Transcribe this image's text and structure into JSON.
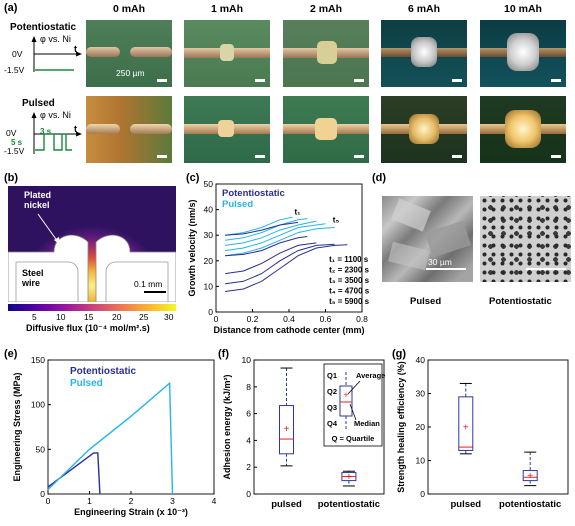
{
  "panel_labels": {
    "a": "(a)",
    "b": "(b)",
    "c": "(c)",
    "d": "(d)",
    "e": "(e)",
    "f": "(f)",
    "g": "(g)"
  },
  "panel_a": {
    "columns": [
      "0 mAh",
      "1 mAh",
      "2 mAh",
      "6 mAh",
      "10 mAh"
    ],
    "rows": [
      {
        "title": "Potentiostatic",
        "axis_label": "φ vs. Ni",
        "t_label": "t",
        "levels": [
          "0V",
          "-1.5V"
        ]
      },
      {
        "title": "Pulsed",
        "axis_label": "φ vs. Ni",
        "t_label": "t",
        "levels": [
          "0V",
          "-1.5V"
        ],
        "pulse_on": "3 s",
        "pulse_off": "5 s"
      }
    ],
    "scale_bar": "250 µm"
  },
  "panel_b": {
    "plated_label": "Plated\nnickel",
    "wire_label": "Steel\nwire",
    "scale_bar": "0.1 mm",
    "colorbar_ticks": [
      "5",
      "10",
      "15",
      "20",
      "25",
      "30"
    ],
    "colorbar_label": "Diffusive flux (10⁻⁴ mol/m².s)"
  },
  "panel_d": {
    "labels": [
      "Pulsed",
      "Potentiostatic"
    ],
    "scale_bar": "30 µm"
  },
  "chart_data": [
    {
      "type": "line",
      "panel": "c",
      "xlabel": "Distance from cathode center (mm)",
      "ylabel": "Growth velocity (nm/s)",
      "xlim": [
        0,
        0.8
      ],
      "ylim": [
        0,
        50
      ],
      "xticks": [
        0,
        0.2,
        0.4,
        0.6,
        0.8
      ],
      "yticks": [
        0,
        10,
        20,
        30,
        40,
        50
      ],
      "legend": [
        "Potentiostatic",
        "Pulsed"
      ],
      "legend_colors": [
        "#2b2f8e",
        "#27b4e6"
      ],
      "series_labels": [
        "t₁",
        "t₅"
      ],
      "time_table": [
        "t₁ = 1100 s",
        "t₂ = 2300 s",
        "t₃ = 3500 s",
        "t₄ = 4700 s",
        "t₅ = 5900 s"
      ],
      "series": [
        {
          "group": "Pulsed",
          "points": [
            [
              0.05,
              30
            ],
            [
              0.15,
              31
            ],
            [
              0.25,
              33
            ],
            [
              0.35,
              36
            ],
            [
              0.42,
              37
            ]
          ]
        },
        {
          "group": "Pulsed",
          "points": [
            [
              0.05,
              28
            ],
            [
              0.15,
              29
            ],
            [
              0.25,
              31
            ],
            [
              0.35,
              34
            ],
            [
              0.45,
              36
            ],
            [
              0.5,
              36.5
            ]
          ]
        },
        {
          "group": "Pulsed",
          "points": [
            [
              0.05,
              26
            ],
            [
              0.15,
              27
            ],
            [
              0.25,
              29
            ],
            [
              0.35,
              32
            ],
            [
              0.45,
              34
            ],
            [
              0.55,
              35.5
            ]
          ]
        },
        {
          "group": "Pulsed",
          "points": [
            [
              0.05,
              24
            ],
            [
              0.15,
              25
            ],
            [
              0.25,
              27
            ],
            [
              0.35,
              30
            ],
            [
              0.45,
              33
            ],
            [
              0.55,
              34
            ],
            [
              0.6,
              34.5
            ]
          ]
        },
        {
          "group": "Pulsed",
          "points": [
            [
              0.05,
              22
            ],
            [
              0.15,
              23
            ],
            [
              0.25,
              25
            ],
            [
              0.35,
              28
            ],
            [
              0.45,
              31
            ],
            [
              0.55,
              32.5
            ],
            [
              0.65,
              33
            ]
          ]
        },
        {
          "group": "Potentiostatic",
          "points": [
            [
              0.05,
              30
            ],
            [
              0.15,
              30.5
            ],
            [
              0.25,
              32
            ],
            [
              0.35,
              34
            ],
            [
              0.45,
              35
            ]
          ]
        },
        {
          "group": "Potentiostatic",
          "points": [
            [
              0.05,
              22
            ],
            [
              0.15,
              22.5
            ],
            [
              0.25,
              24
            ],
            [
              0.35,
              27
            ],
            [
              0.45,
              29
            ],
            [
              0.5,
              29.5
            ]
          ]
        },
        {
          "group": "Potentiostatic",
          "points": [
            [
              0.05,
              15
            ],
            [
              0.15,
              16
            ],
            [
              0.25,
              19
            ],
            [
              0.35,
              23
            ],
            [
              0.45,
              26
            ],
            [
              0.55,
              27
            ]
          ]
        },
        {
          "group": "Potentiostatic",
          "points": [
            [
              0.05,
              11
            ],
            [
              0.15,
              12
            ],
            [
              0.25,
              15
            ],
            [
              0.35,
              20
            ],
            [
              0.45,
              24
            ],
            [
              0.55,
              26
            ],
            [
              0.65,
              26.5
            ]
          ]
        },
        {
          "group": "Potentiostatic",
          "points": [
            [
              0.05,
              8
            ],
            [
              0.15,
              9
            ],
            [
              0.25,
              12
            ],
            [
              0.35,
              17
            ],
            [
              0.45,
              22
            ],
            [
              0.55,
              25
            ],
            [
              0.65,
              26
            ],
            [
              0.72,
              26.3
            ]
          ]
        }
      ]
    },
    {
      "type": "line",
      "panel": "e",
      "xlabel": "Engineering Strain (x 10⁻³)",
      "ylabel": "Engineering Stress (MPa)",
      "xlim": [
        0,
        4
      ],
      "ylim": [
        0,
        150
      ],
      "xticks": [
        0,
        1,
        2,
        3,
        4
      ],
      "yticks": [
        0,
        50,
        100,
        150
      ],
      "series": [
        {
          "name": "Potentiostatic",
          "color": "#2b2f8e",
          "points": [
            [
              0,
              8
            ],
            [
              1.1,
              46
            ],
            [
              1.2,
              46
            ],
            [
              1.25,
              0
            ]
          ]
        },
        {
          "name": "Pulsed",
          "color": "#27b4e6",
          "points": [
            [
              0,
              5
            ],
            [
              1,
              50
            ],
            [
              2,
              87
            ],
            [
              2.93,
              124
            ],
            [
              3.0,
              0
            ]
          ]
        }
      ]
    },
    {
      "type": "box",
      "panel": "f",
      "ylabel": "Adhesion energy (kJ/m²)",
      "ylim": [
        0,
        10
      ],
      "yticks": [
        0,
        2,
        4,
        6,
        8,
        10
      ],
      "categories": [
        "pulsed",
        "potentiostatic"
      ],
      "boxes": [
        {
          "min": 2.1,
          "q1": 3.0,
          "median": 4.1,
          "mean": 4.9,
          "q3": 6.6,
          "max": 9.4
        },
        {
          "min": 0.6,
          "q1": 1.0,
          "median": 1.3,
          "mean": 1.3,
          "q3": 1.6,
          "max": 1.7
        }
      ],
      "legend_box": {
        "labels": [
          "Q1",
          "Q2",
          "Q3",
          "Q4"
        ],
        "average": "Average",
        "median": "Median",
        "quartile": "Q = Quartile"
      }
    },
    {
      "type": "box",
      "panel": "g",
      "ylabel": "Strength healing efficiency (%)",
      "ylim": [
        0,
        40
      ],
      "yticks": [
        0,
        10,
        20,
        30,
        40
      ],
      "categories": [
        "pulsed",
        "potentiostatic"
      ],
      "boxes": [
        {
          "min": 12,
          "q1": 13,
          "median": 14,
          "mean": 20,
          "q3": 29,
          "max": 33
        },
        {
          "min": 2.5,
          "q1": 4,
          "median": 5,
          "mean": 5.5,
          "q3": 7,
          "max": 12.5
        }
      ]
    }
  ]
}
